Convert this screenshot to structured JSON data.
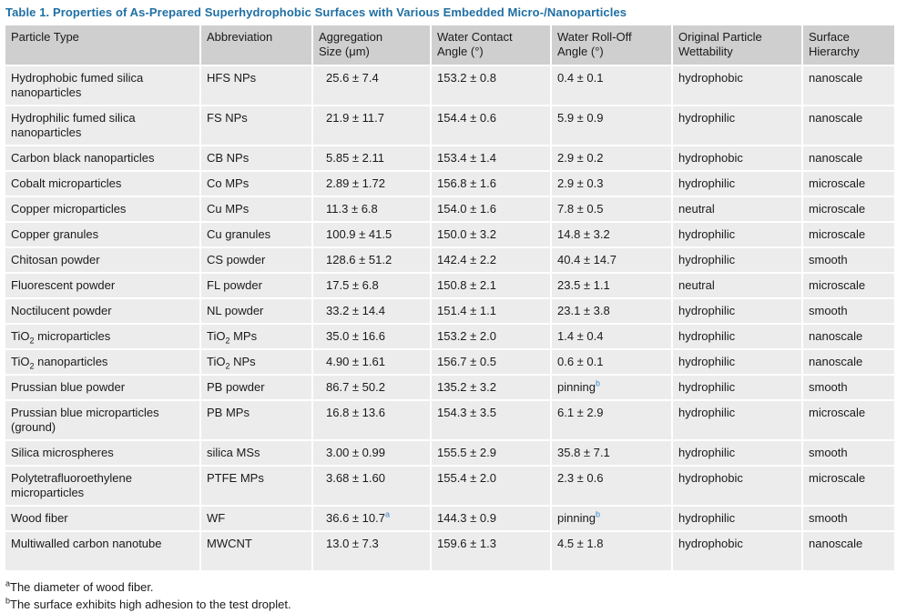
{
  "caption": "Table 1. Properties of As-Prepared Superhydrophobic Surfaces with Various Embedded Micro-/Nanoparticles",
  "headers": {
    "h0": "Particle Type",
    "h1": "Abbreviation",
    "h2a": "Aggregation",
    "h2b": "Size (μm)",
    "h3a": "Water Contact",
    "h3b": "Angle (°)",
    "h4a": "Water Roll-Off",
    "h4b": "Angle (°)",
    "h5a": "Original Particle",
    "h5b": "Wettability",
    "h6a": "Surface",
    "h6b": "Hierarchy"
  },
  "rows": [
    {
      "particle": "Hydrophobic fumed silica nanoparticles",
      "abbr": "HFS NPs",
      "agg": "25.6 ± 7.4",
      "wca": "153.2 ± 0.8",
      "roll": "0.4 ± 0.1",
      "wet": "hydrophobic",
      "hier": "nanoscale"
    },
    {
      "particle": "Hydrophilic fumed silica nanoparticles",
      "abbr": "FS NPs",
      "agg": "21.9 ± 11.7",
      "wca": "154.4 ± 0.6",
      "roll": "5.9 ± 0.9",
      "wet": "hydrophilic",
      "hier": "nanoscale"
    },
    {
      "particle": "Carbon black nanoparticles",
      "abbr": "CB NPs",
      "agg": "5.85 ± 2.11",
      "wca": "153.4 ± 1.4",
      "roll": "2.9 ± 0.2",
      "wet": "hydrophobic",
      "hier": "nanoscale"
    },
    {
      "particle": "Cobalt microparticles",
      "abbr": "Co MPs",
      "agg": "2.89 ± 1.72",
      "wca": "156.8 ± 1.6",
      "roll": "2.9 ± 0.3",
      "wet": "hydrophilic",
      "hier": "microscale"
    },
    {
      "particle": "Copper microparticles",
      "abbr": "Cu MPs",
      "agg": "11.3 ± 6.8",
      "wca": "154.0 ± 1.6",
      "roll": "7.8 ± 0.5",
      "wet": "neutral",
      "hier": "microscale"
    },
    {
      "particle": "Copper granules",
      "abbr": "Cu granules",
      "agg": "100.9 ± 41.5",
      "wca": "150.0 ± 3.2",
      "roll": "14.8 ± 3.2",
      "wet": "hydrophilic",
      "hier": "microscale"
    },
    {
      "particle": "Chitosan powder",
      "abbr": "CS powder",
      "agg": "128.6 ± 51.2",
      "wca": "142.4 ± 2.2",
      "roll": "40.4 ± 14.7",
      "wet": "hydrophilic",
      "hier": "smooth"
    },
    {
      "particle": "Fluorescent powder",
      "abbr": "FL powder",
      "agg": "17.5 ± 6.8",
      "wca": "150.8 ± 2.1",
      "roll": "23.5 ± 1.1",
      "wet": "neutral",
      "hier": "microscale"
    },
    {
      "particle": "Noctilucent powder",
      "abbr": "NL powder",
      "agg": "33.2 ± 14.4",
      "wca": "151.4 ± 1.1",
      "roll": "23.1 ± 3.8",
      "wet": "hydrophilic",
      "hier": "smooth"
    },
    {
      "particle_pre": "TiO",
      "particle_sub": "2",
      "particle_post": " microparticles",
      "abbr_pre": "TiO",
      "abbr_sub": "2",
      "abbr_post": " MPs",
      "agg": "35.0 ± 16.6",
      "wca": "153.2 ± 2.0",
      "roll": "1.4 ± 0.4",
      "wet": "hydrophilic",
      "hier": "nanoscale"
    },
    {
      "particle_pre": "TiO",
      "particle_sub": "2",
      "particle_post": " nanoparticles",
      "abbr_pre": "TiO",
      "abbr_sub": "2",
      "abbr_post": " NPs",
      "agg": "4.90 ± 1.61",
      "wca": "156.7 ± 0.5",
      "roll": "0.6 ± 0.1",
      "wet": "hydrophilic",
      "hier": "nanoscale"
    },
    {
      "particle": "Prussian blue powder",
      "abbr": "PB powder",
      "agg": "86.7 ± 50.2",
      "wca": "135.2 ± 3.2",
      "roll": "pinning",
      "roll_sup": "b",
      "wet": "hydrophilic",
      "hier": "smooth"
    },
    {
      "particle": "Prussian blue microparticles (ground)",
      "abbr": "PB MPs",
      "agg": "16.8 ± 13.6",
      "wca": "154.3 ± 3.5",
      "roll": "6.1 ± 2.9",
      "wet": "hydrophilic",
      "hier": "microscale"
    },
    {
      "particle": "Silica microspheres",
      "abbr": "silica MSs",
      "agg": "3.00 ± 0.99",
      "wca": "155.5 ± 2.9",
      "roll": "35.8 ± 7.1",
      "wet": "hydrophilic",
      "hier": "smooth"
    },
    {
      "particle": "Polytetrafluoroethylene microparticles",
      "abbr": "PTFE MPs",
      "agg": "3.68 ± 1.60",
      "wca": "155.4 ± 2.0",
      "roll": "2.3 ± 0.6",
      "wet": "hydrophobic",
      "hier": "microscale"
    },
    {
      "particle": "Wood fiber",
      "abbr": "WF",
      "agg": "36.6 ± 10.7",
      "agg_sup": "a",
      "wca": "144.3 ± 0.9",
      "roll": "pinning",
      "roll_sup": "b",
      "wet": "hydrophilic",
      "hier": "smooth"
    },
    {
      "particle": "Multiwalled carbon nanotube",
      "abbr": "MWCNT",
      "agg": "13.0 ± 7.3",
      "wca": "159.6 ± 1.3",
      "roll": "4.5 ± 1.8",
      "wet": "hydrophobic",
      "hier": "nanoscale"
    }
  ],
  "footnotes": {
    "a_mark": "a",
    "a_text": "The diameter of wood fiber.",
    "b_mark": "b",
    "b_text": "The surface exhibits high adhesion to the test droplet."
  }
}
